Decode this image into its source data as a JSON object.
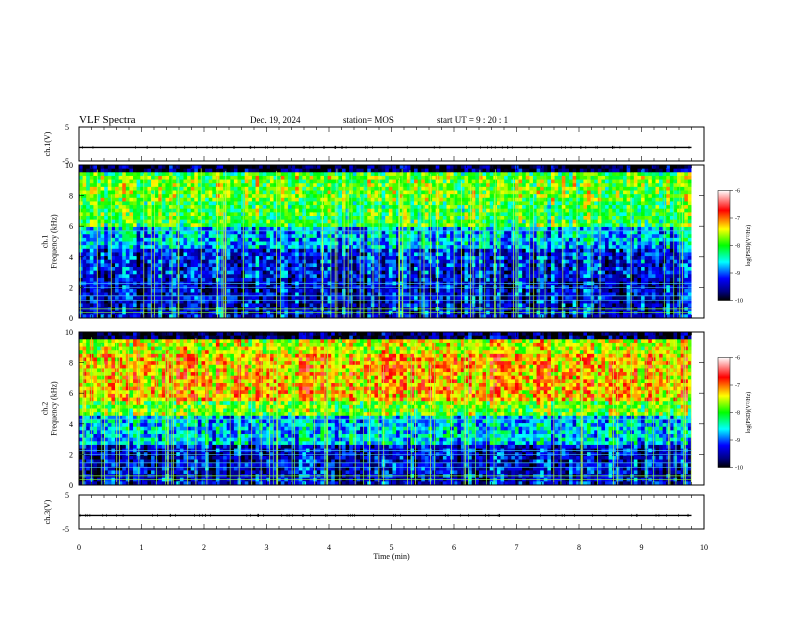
{
  "header": {
    "title": "VLF Spectra",
    "date": "Dec. 19, 2024",
    "station": "station= MOS",
    "start": "start  UT  =   9 : 20 : 1"
  },
  "chart_data": [
    {
      "type": "line",
      "name": "ch1-voltage",
      "ylabel": "ch.1(V)",
      "ylim": [
        -5,
        5
      ],
      "x": [
        0,
        9.8
      ],
      "y": [
        -1,
        -1
      ]
    },
    {
      "type": "heatmap",
      "name": "ch1-spectrogram",
      "ylabel": "ch.1\nFrequency  (kHz)",
      "ylim": [
        0,
        10
      ],
      "yticks": [
        0,
        2,
        4,
        6,
        8,
        10
      ],
      "xlim": [
        0,
        10
      ],
      "data_end_x": 9.8,
      "colorbar": {
        "label": "log(PSD)(V²/Hz)",
        "range": [
          -10,
          -6
        ],
        "ticks": [
          -6,
          -7,
          -8,
          -9,
          -10
        ]
      }
    },
    {
      "type": "heatmap",
      "name": "ch2-spectrogram",
      "ylabel": "ch.2\nFrequency  (kHz)",
      "ylim": [
        0,
        10
      ],
      "yticks": [
        0,
        2,
        4,
        6,
        8,
        10
      ],
      "xlim": [
        0,
        10
      ],
      "data_end_x": 9.8,
      "colorbar": {
        "label": "log(PSD)(V²/Hz)",
        "range": [
          -10,
          -6
        ],
        "ticks": [
          -6,
          -7,
          -8,
          -9,
          -10
        ]
      }
    },
    {
      "type": "line",
      "name": "ch3-voltage",
      "ylabel": "ch.3(V)",
      "ylim": [
        -5,
        5
      ],
      "x": [
        0,
        9.8
      ],
      "y": [
        -1,
        -1
      ],
      "xlabel": "Time  (min)",
      "xticks": [
        0,
        1,
        2,
        3,
        4,
        5,
        6,
        7,
        8,
        9,
        10
      ]
    }
  ]
}
